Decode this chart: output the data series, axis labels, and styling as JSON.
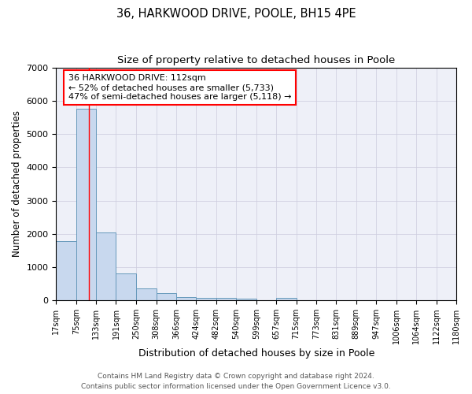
{
  "title": "36, HARKWOOD DRIVE, POOLE, BH15 4PE",
  "subtitle": "Size of property relative to detached houses in Poole",
  "xlabel": "Distribution of detached houses by size in Poole",
  "ylabel": "Number of detached properties",
  "footnote1": "Contains HM Land Registry data © Crown copyright and database right 2024.",
  "footnote2": "Contains public sector information licensed under the Open Government Licence v3.0.",
  "bin_edges": [
    17,
    75,
    133,
    191,
    250,
    308,
    366,
    424,
    482,
    540,
    599,
    657,
    715,
    773,
    831,
    889,
    947,
    1006,
    1064,
    1122,
    1180
  ],
  "bar_heights": [
    1780,
    5750,
    2030,
    810,
    360,
    215,
    95,
    85,
    65,
    60,
    0,
    80,
    0,
    0,
    0,
    0,
    0,
    0,
    0,
    0
  ],
  "bar_color": "#c8d8ee",
  "bar_edge_color": "#6699bb",
  "bar_linewidth": 0.7,
  "red_line_x": 112,
  "ylim": [
    0,
    7000
  ],
  "xlim": [
    17,
    1180
  ],
  "annotation_text": "36 HARKWOOD DRIVE: 112sqm\n← 52% of detached houses are smaller (5,733)\n47% of semi-detached houses are larger (5,118) →",
  "grid_color": "#ccccdd",
  "bg_color": "#eef0f8",
  "title_fontsize": 10.5,
  "subtitle_fontsize": 9.5,
  "tick_fontsize": 7,
  "ylabel_fontsize": 8.5,
  "xlabel_fontsize": 9,
  "annotation_fontsize": 8,
  "footnote_fontsize": 6.5,
  "yticks": [
    0,
    1000,
    2000,
    3000,
    4000,
    5000,
    6000,
    7000
  ]
}
